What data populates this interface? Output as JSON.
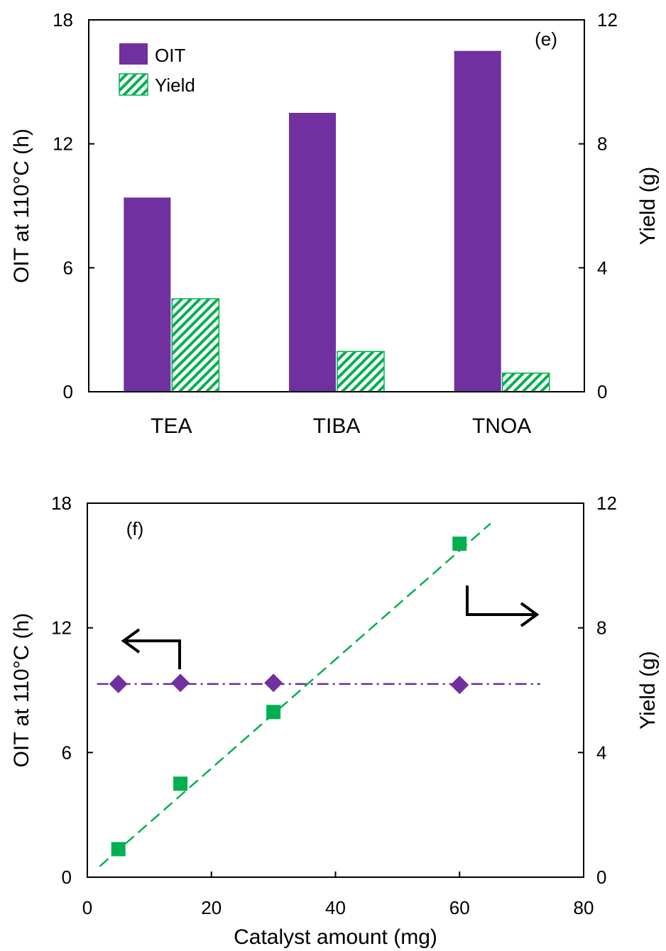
{
  "chart_data": [
    {
      "type": "bar",
      "panel_label": "(e)",
      "categories": [
        "TEA",
        "TIBA",
        "TNOA"
      ],
      "ylabel": "OIT at 110°C (h)",
      "ylabel_right": "Yield (g)",
      "ylim": [
        0,
        18
      ],
      "yticks": [
        "0",
        "6",
        "12",
        "18"
      ],
      "ylim_right": [
        0,
        12
      ],
      "yticks_right": [
        "0",
        "4",
        "8",
        "12"
      ],
      "legend_position": "top-left",
      "series": [
        {
          "name": "OIT",
          "axis": "left",
          "values": [
            9.4,
            13.5,
            16.5
          ],
          "color": "#7030a0",
          "pattern": "solid"
        },
        {
          "name": "Yield",
          "axis": "right",
          "values": [
            3.0,
            1.3,
            0.6
          ],
          "color": "#00b050",
          "pattern": "hatched"
        }
      ]
    },
    {
      "type": "scatter",
      "panel_label": "(f)",
      "xlabel": "Catalyst amount (mg)",
      "xlim": [
        0,
        80
      ],
      "xticks": [
        "0",
        "20",
        "40",
        "60",
        "80"
      ],
      "ylabel": "OIT at 110°C (h)",
      "ylabel_right": "Yield (g)",
      "ylim": [
        0,
        18
      ],
      "yticks": [
        "0",
        "6",
        "12",
        "18"
      ],
      "ylim_right": [
        0,
        12
      ],
      "yticks_right": [
        "0",
        "4",
        "8",
        "12"
      ],
      "series": [
        {
          "axis": "left",
          "marker": "diamond",
          "color": "#7030a0",
          "x": [
            5,
            15,
            30,
            60
          ],
          "y": [
            9.3,
            9.35,
            9.35,
            9.25
          ],
          "fit": {
            "style": "dash-dot",
            "x": [
              5,
              73
            ],
            "y": [
              9.3,
              9.3
            ]
          }
        },
        {
          "axis": "right",
          "marker": "square",
          "color": "#00b050",
          "x": [
            5,
            15,
            30,
            60
          ],
          "y": [
            0.9,
            3.0,
            5.3,
            10.7
          ],
          "fit": {
            "style": "dashed",
            "x": [
              2,
              65
            ],
            "y": [
              0.35,
              11.35
            ]
          }
        }
      ],
      "annotations": [
        {
          "type": "arrow",
          "direction": "left",
          "meaning": "diamonds use left axis"
        },
        {
          "type": "arrow",
          "direction": "right",
          "meaning": "squares use right axis"
        }
      ]
    }
  ]
}
